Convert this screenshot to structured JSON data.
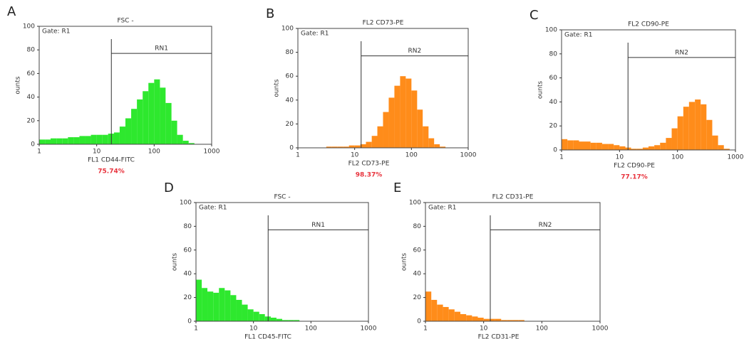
{
  "chart_data": [
    {
      "type": "histogram",
      "panel": "A",
      "title": "FSC -",
      "gate_text": "Gate: R1",
      "xlabel": "FL1 CD44-FITC",
      "ylabel": "ounts",
      "annotation": "75.74%",
      "color": "#2ee82e",
      "log_x": true,
      "gate": {
        "label": "RN1",
        "x": 18,
        "y": 77
      },
      "bins": [
        1,
        1.26,
        1.58,
        2,
        2.51,
        3.16,
        3.98,
        5.01,
        6.31,
        7.94,
        10,
        12.6,
        15.8,
        20,
        25.1,
        31.6,
        39.8,
        50.1,
        63.1,
        79.4,
        100,
        126,
        158,
        200,
        251,
        316,
        398,
        501,
        631,
        794,
        1000
      ],
      "values": [
        4,
        4,
        5,
        5,
        5,
        6,
        6,
        7,
        7,
        8,
        8,
        8,
        9,
        10,
        15,
        22,
        30,
        38,
        45,
        52,
        55,
        48,
        35,
        20,
        8,
        3,
        1,
        0,
        0,
        0
      ],
      "xlim": [
        1,
        1000
      ],
      "xticks": [
        1,
        10,
        100,
        1000
      ],
      "ylim": [
        0,
        100
      ],
      "yticks": [
        0,
        20,
        40,
        60,
        80,
        100
      ]
    },
    {
      "type": "histogram",
      "panel": "B",
      "title": "FL2 CD73-PE",
      "gate_text": "Gate: R1",
      "xlabel": "FL2 CD73-PE",
      "ylabel": "ounts",
      "annotation": "98.37%",
      "color": "#ff8c1a",
      "log_x": true,
      "gate": {
        "label": "RN2",
        "x": 13,
        "y": 77
      },
      "bins": [
        1,
        1.26,
        1.58,
        2,
        2.51,
        3.16,
        3.98,
        5.01,
        6.31,
        7.94,
        10,
        12.6,
        15.8,
        20,
        25.1,
        31.6,
        39.8,
        50.1,
        63.1,
        79.4,
        100,
        126,
        158,
        200,
        251,
        316,
        398,
        501,
        631,
        794,
        1000
      ],
      "values": [
        0,
        0,
        0,
        0,
        0,
        1,
        1,
        1,
        1,
        2,
        2,
        3,
        5,
        10,
        18,
        30,
        42,
        52,
        60,
        58,
        48,
        32,
        18,
        8,
        3,
        1,
        0,
        0,
        0,
        0
      ],
      "xlim": [
        1,
        1000
      ],
      "xticks": [
        1,
        10,
        100,
        1000
      ],
      "ylim": [
        0,
        100
      ],
      "yticks": [
        0,
        20,
        40,
        60,
        80,
        100
      ]
    },
    {
      "type": "histogram",
      "panel": "C",
      "title": "FL2 CD90-PE",
      "gate_text": "Gate: R1",
      "xlabel": "FL2 CD90-PE",
      "ylabel": "ounts",
      "annotation": "77.17%",
      "color": "#ff8c1a",
      "log_x": true,
      "gate": {
        "label": "RN2",
        "x": 14,
        "y": 77
      },
      "bins": [
        1,
        1.26,
        1.58,
        2,
        2.51,
        3.16,
        3.98,
        5.01,
        6.31,
        7.94,
        10,
        12.6,
        15.8,
        20,
        25.1,
        31.6,
        39.8,
        50.1,
        63.1,
        79.4,
        100,
        126,
        158,
        200,
        251,
        316,
        398,
        501,
        631,
        794,
        1000
      ],
      "values": [
        9,
        8,
        8,
        7,
        7,
        6,
        6,
        5,
        5,
        4,
        3,
        2,
        1,
        1,
        2,
        3,
        4,
        6,
        10,
        18,
        28,
        36,
        40,
        42,
        38,
        25,
        12,
        4,
        1,
        0
      ],
      "xlim": [
        1,
        1000
      ],
      "xticks": [
        1,
        10,
        100,
        1000
      ],
      "ylim": [
        0,
        100
      ],
      "yticks": [
        0,
        20,
        40,
        60,
        80,
        100
      ]
    },
    {
      "type": "histogram",
      "panel": "D",
      "title": "FSC -",
      "gate_text": "Gate: R1",
      "xlabel": "FL1 CD45-FITC",
      "ylabel": "ounts",
      "color": "#2ee82e",
      "log_x": true,
      "gate": {
        "label": "RN1",
        "x": 18,
        "y": 77
      },
      "bins": [
        1,
        1.26,
        1.58,
        2,
        2.51,
        3.16,
        3.98,
        5.01,
        6.31,
        7.94,
        10,
        12.6,
        15.8,
        20,
        25.1,
        31.6,
        39.8,
        50.1,
        63.1,
        79.4,
        100,
        126,
        158,
        200,
        251,
        316,
        398,
        501,
        631,
        794,
        1000
      ],
      "values": [
        35,
        28,
        25,
        24,
        28,
        26,
        22,
        18,
        14,
        10,
        8,
        6,
        4,
        3,
        2,
        1,
        1,
        1,
        0,
        0,
        0,
        0,
        0,
        0,
        0,
        0,
        0,
        0,
        0,
        0
      ],
      "xlim": [
        1,
        1000
      ],
      "xticks": [
        1,
        10,
        100,
        1000
      ],
      "ylim": [
        0,
        100
      ],
      "yticks": [
        0,
        20,
        40,
        60,
        80,
        100
      ]
    },
    {
      "type": "histogram",
      "panel": "E",
      "title": "FL2 CD31-PE",
      "gate_text": "Gate: R1",
      "xlabel": "FL2 CD31-PE",
      "ylabel": "ounts",
      "color": "#ff8c1a",
      "log_x": true,
      "gate": {
        "label": "RN2",
        "x": 13,
        "y": 77
      },
      "bins": [
        1,
        1.26,
        1.58,
        2,
        2.51,
        3.16,
        3.98,
        5.01,
        6.31,
        7.94,
        10,
        12.6,
        15.8,
        20,
        25.1,
        31.6,
        39.8,
        50.1,
        63.1,
        79.4,
        100,
        126,
        158,
        200,
        251,
        316,
        398,
        501,
        631,
        794,
        1000
      ],
      "values": [
        25,
        18,
        14,
        12,
        10,
        8,
        6,
        5,
        4,
        3,
        2,
        2,
        2,
        1,
        1,
        1,
        1,
        0,
        0,
        0,
        0,
        0,
        0,
        0,
        0,
        0,
        0,
        0,
        0,
        0
      ],
      "xlim": [
        1,
        1000
      ],
      "xticks": [
        1,
        10,
        100,
        1000
      ],
      "ylim": [
        0,
        100
      ],
      "yticks": [
        0,
        20,
        40,
        60,
        80,
        100
      ]
    }
  ]
}
